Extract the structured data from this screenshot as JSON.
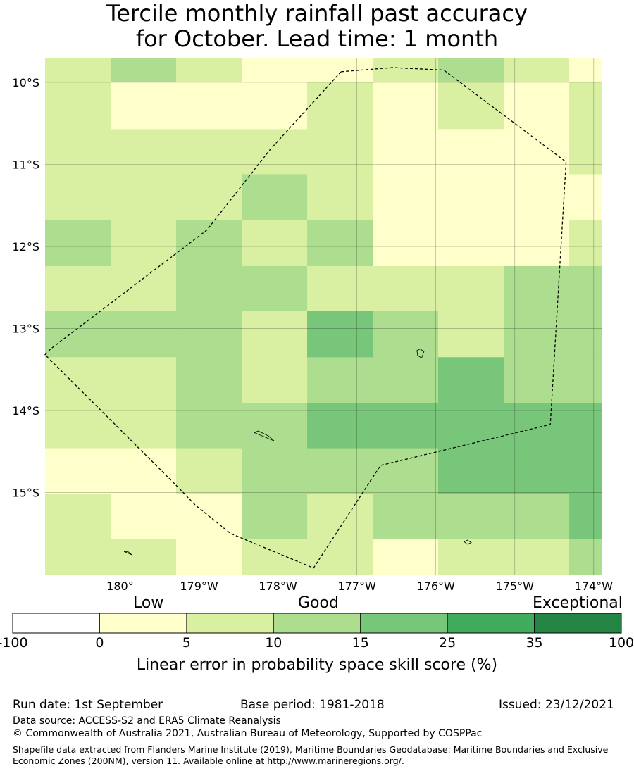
{
  "title": {
    "line1": "Tercile monthly rainfall past accuracy",
    "line2": "for October. Lead time: 1 month"
  },
  "map": {
    "lon_range": [
      -180.95,
      -173.9
    ],
    "lat_range": [
      -16.0,
      -9.7
    ],
    "lat_ticks": [
      {
        "value": -10,
        "label": "10°S"
      },
      {
        "value": -11,
        "label": "11°S"
      },
      {
        "value": -12,
        "label": "12°S"
      },
      {
        "value": -13,
        "label": "13°S"
      },
      {
        "value": -14,
        "label": "14°S"
      },
      {
        "value": -15,
        "label": "15°S"
      }
    ],
    "lon_ticks": [
      {
        "value": -180,
        "label": "180°"
      },
      {
        "value": -179,
        "label": "179°W"
      },
      {
        "value": -178,
        "label": "178°W"
      },
      {
        "value": -177,
        "label": "177°W"
      },
      {
        "value": -176,
        "label": "176°W"
      },
      {
        "value": -175,
        "label": "175°W"
      },
      {
        "value": -174,
        "label": "174°W"
      }
    ],
    "grid": {
      "lon_edges": [
        -180.95,
        -180.12,
        -179.29,
        -178.46,
        -177.63,
        -176.8,
        -175.97,
        -175.14,
        -174.31,
        -173.9
      ],
      "lat_edges": [
        -9.7,
        -10.0,
        -10.57,
        -11.12,
        -11.68,
        -12.24,
        -12.79,
        -13.35,
        -13.91,
        -14.46,
        -15.02,
        -15.57,
        -16.0
      ],
      "skill_rows": [
        [
          7,
          12,
          7,
          3,
          3,
          7,
          12,
          7,
          3
        ],
        [
          7,
          3,
          3,
          3,
          7,
          3,
          7,
          3,
          7
        ],
        [
          7,
          7,
          7,
          7,
          7,
          3,
          3,
          3,
          7
        ],
        [
          7,
          7,
          7,
          12,
          7,
          3,
          3,
          3,
          3
        ],
        [
          12,
          7,
          12,
          7,
          12,
          3,
          3,
          3,
          7
        ],
        [
          7,
          7,
          12,
          12,
          7,
          7,
          7,
          12,
          12
        ],
        [
          12,
          12,
          12,
          7,
          20,
          12,
          7,
          12,
          12
        ],
        [
          7,
          7,
          12,
          7,
          12,
          12,
          20,
          12,
          12
        ],
        [
          7,
          7,
          12,
          12,
          20,
          20,
          20,
          20,
          20
        ],
        [
          3,
          3,
          7,
          12,
          12,
          12,
          20,
          20,
          20
        ],
        [
          7,
          3,
          3,
          12,
          7,
          12,
          12,
          12,
          20
        ],
        [
          7,
          7,
          3,
          7,
          7,
          3,
          7,
          7,
          12
        ]
      ]
    },
    "eez_boundary": [
      [
        -177.2,
        -9.87
      ],
      [
        -176.55,
        -9.82
      ],
      [
        -175.9,
        -9.85
      ],
      [
        -174.35,
        -10.97
      ],
      [
        -174.55,
        -14.17
      ],
      [
        -176.7,
        -14.67
      ],
      [
        -177.55,
        -15.92
      ],
      [
        -178.6,
        -15.5
      ],
      [
        -179.05,
        -15.15
      ],
      [
        -179.25,
        -14.95
      ],
      [
        -180.95,
        -13.32
      ],
      [
        -180.88,
        -13.25
      ],
      [
        -178.9,
        -11.8
      ],
      [
        -178.1,
        -10.82
      ],
      [
        -177.2,
        -9.87
      ]
    ],
    "islands": [
      {
        "name": "",
        "points": [
          [
            -176.2,
            -13.25
          ],
          [
            -176.15,
            -13.28
          ],
          [
            -176.18,
            -13.36
          ],
          [
            -176.23,
            -13.33
          ],
          [
            -176.24,
            -13.27
          ]
        ]
      },
      {
        "name": "",
        "points": [
          [
            -178.3,
            -14.27
          ],
          [
            -178.2,
            -14.31
          ],
          [
            -178.05,
            -14.37
          ],
          [
            -178.12,
            -14.31
          ],
          [
            -178.25,
            -14.25
          ]
        ]
      },
      {
        "name": "",
        "points": [
          [
            -179.95,
            -15.72
          ],
          [
            -179.85,
            -15.76
          ],
          [
            -179.9,
            -15.72
          ]
        ]
      },
      {
        "name": "",
        "points": [
          [
            -175.6,
            -15.58
          ],
          [
            -175.55,
            -15.61
          ],
          [
            -175.6,
            -15.63
          ],
          [
            -175.64,
            -15.6
          ]
        ]
      }
    ]
  },
  "colorbar": {
    "segments": [
      {
        "from": "-100",
        "to": "0",
        "color": "#ffffff"
      },
      {
        "from": "0",
        "to": "5",
        "color": "#ffffcc"
      },
      {
        "from": "5",
        "to": "10",
        "color": "#d9f0a3"
      },
      {
        "from": "10",
        "to": "15",
        "color": "#addd8e"
      },
      {
        "from": "15",
        "to": "25",
        "color": "#78c679"
      },
      {
        "from": "25",
        "to": "35",
        "color": "#41ab5d"
      },
      {
        "from": "35",
        "to": "100",
        "color": "#238443"
      }
    ],
    "tick_labels": [
      "-100",
      "0",
      "5",
      "10",
      "15",
      "25",
      "35",
      "100"
    ],
    "category_low": "Low",
    "category_good": "Good",
    "category_exceptional": "Exceptional",
    "axis_title": "Linear error in probability space skill score (%)"
  },
  "footer": {
    "run_date": "Run date: 1st September",
    "base_period": "Base period: 1981-2018",
    "issued": "Issued: 23/12/2021",
    "data_source": "Data source: ACCESS-S2 and ERA5 Climate Reanalysis",
    "copyright": "© Commonwealth of Australia 2021, Australian Bureau of Meteorology, Supported by COSPPac",
    "shapefile_credit": "Shapefile data extracted from Flanders Marine Institute (2019), Maritime Boundaries Geodatabase: Maritime Boundaries and Exclusive Economic Zones (200NM), version 11. Available online at http://www.marineregions.org/."
  }
}
